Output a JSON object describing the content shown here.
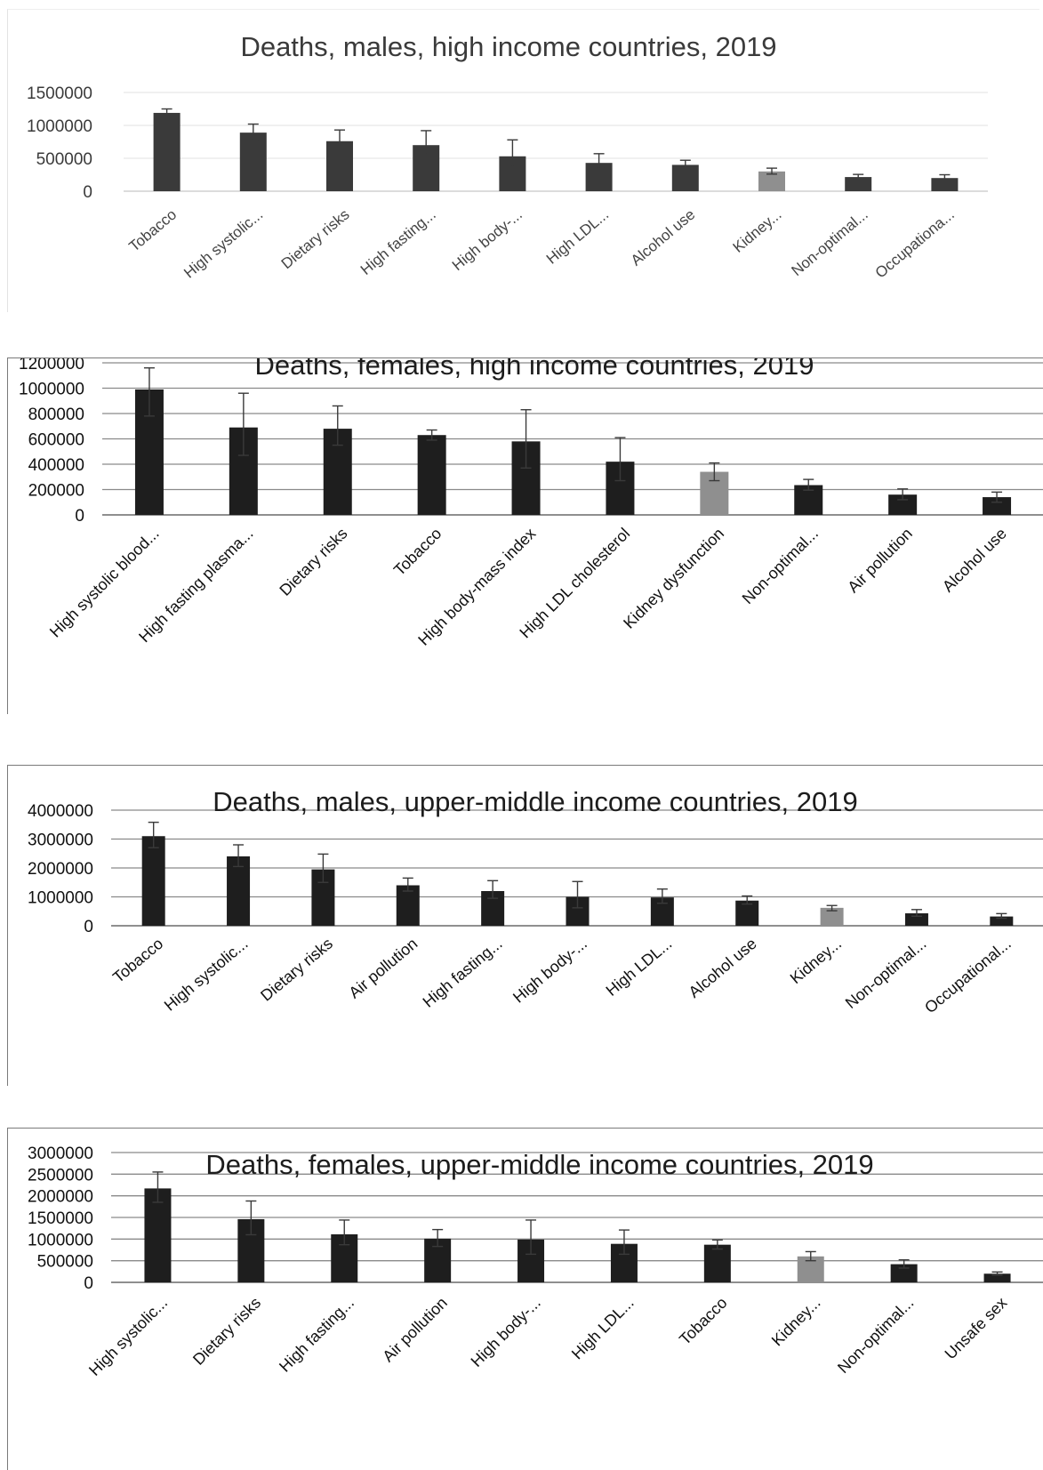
{
  "colors": {
    "bar": "#1e1e1e",
    "bar_light_chart": "#3a3a3a",
    "highlight": "#8f8f8f",
    "grid_light": "#e6e6e6",
    "grid_dark": "#8a8a8a"
  },
  "chart_data": [
    {
      "type": "bar",
      "title": "Deaths, males, high income countries, 2019",
      "xlabel": "",
      "ylabel": "",
      "ylim": [
        0,
        1500000
      ],
      "yticks": [
        0,
        500000,
        1000000,
        1500000
      ],
      "ytick_labels": [
        "0",
        "500000",
        "1000000",
        "1500000"
      ],
      "grid": true,
      "categories": [
        "Tobacco",
        "High systolic...",
        "Dietary risks",
        "High fasting...",
        "High body-...",
        "High LDL...",
        "Alcohol use",
        "Kidney...",
        "Non-optimal...",
        "Occupationa..."
      ],
      "values": [
        1190000,
        890000,
        760000,
        700000,
        530000,
        430000,
        400000,
        300000,
        215000,
        200000
      ],
      "error_upper": [
        1250000,
        1020000,
        930000,
        920000,
        780000,
        570000,
        470000,
        350000,
        255000,
        250000
      ],
      "error_lower": [
        null,
        780000,
        620000,
        560000,
        370000,
        350000,
        340000,
        260000,
        190000,
        170000
      ],
      "highlight_index": 7
    },
    {
      "type": "bar",
      "title": "Deaths, females, high income countries, 2019",
      "xlabel": "",
      "ylabel": "",
      "ylim": [
        0,
        1200000
      ],
      "yticks": [
        0,
        200000,
        400000,
        600000,
        800000,
        1000000,
        1200000
      ],
      "ytick_labels": [
        "0",
        "200000",
        "400000",
        "600000",
        "800000",
        "1000000",
        "1200000"
      ],
      "grid": true,
      "categories": [
        "High systolic blood...",
        "High fasting plasma...",
        "Dietary risks",
        "Tobacco",
        "High body-mass index",
        "High LDL cholesterol",
        "Kidney dysfunction",
        "Non-optimal...",
        "Air pollution",
        "Alcohol use"
      ],
      "values": [
        990000,
        690000,
        680000,
        630000,
        580000,
        420000,
        340000,
        235000,
        160000,
        140000
      ],
      "error_upper": [
        1160000,
        960000,
        860000,
        670000,
        830000,
        610000,
        410000,
        280000,
        205000,
        180000
      ],
      "error_lower": [
        780000,
        470000,
        550000,
        590000,
        370000,
        270000,
        270000,
        195000,
        120000,
        100000
      ],
      "highlight_index": 6
    },
    {
      "type": "bar",
      "title": "Deaths, males, upper-middle income countries, 2019",
      "xlabel": "",
      "ylabel": "",
      "ylim": [
        0,
        4000000
      ],
      "yticks": [
        0,
        1000000,
        2000000,
        3000000,
        4000000
      ],
      "ytick_labels": [
        "0",
        "1000000",
        "2000000",
        "3000000",
        "4000000"
      ],
      "grid": true,
      "categories": [
        "Tobacco",
        "High systolic...",
        "Dietary risks",
        "Air pollution",
        "High fasting...",
        "High body-...",
        "High LDL...",
        "Alcohol use",
        "Kidney...",
        "Non-optimal...",
        "Occupational..."
      ],
      "values": [
        3100000,
        2400000,
        1950000,
        1400000,
        1200000,
        1000000,
        980000,
        870000,
        620000,
        430000,
        320000
      ],
      "error_upper": [
        3580000,
        2800000,
        2480000,
        1650000,
        1560000,
        1530000,
        1270000,
        1030000,
        700000,
        560000,
        420000
      ],
      "error_lower": [
        2700000,
        2050000,
        1500000,
        1200000,
        950000,
        620000,
        780000,
        750000,
        520000,
        330000,
        260000
      ],
      "highlight_index": 8
    },
    {
      "type": "bar",
      "title": "Deaths, females, upper-middle income countries, 2019",
      "xlabel": "",
      "ylabel": "",
      "ylim": [
        0,
        3000000
      ],
      "yticks": [
        0,
        500000,
        1000000,
        1500000,
        2000000,
        2500000,
        3000000
      ],
      "ytick_labels": [
        "0",
        "500000",
        "1000000",
        "1500000",
        "2000000",
        "2500000",
        "3000000"
      ],
      "grid": true,
      "categories": [
        "High systolic...",
        "Dietary risks",
        "High fasting...",
        "Air pollution",
        "High body-...",
        "High LDL...",
        "Tobacco",
        "Kidney...",
        "Non-optimal...",
        "Unsafe sex"
      ],
      "values": [
        2170000,
        1460000,
        1110000,
        1010000,
        990000,
        890000,
        870000,
        600000,
        420000,
        200000
      ],
      "error_upper": [
        2550000,
        1880000,
        1440000,
        1220000,
        1440000,
        1210000,
        980000,
        710000,
        520000,
        240000
      ],
      "error_lower": [
        1850000,
        1100000,
        870000,
        830000,
        650000,
        650000,
        770000,
        500000,
        330000,
        170000
      ],
      "highlight_index": 7
    }
  ]
}
